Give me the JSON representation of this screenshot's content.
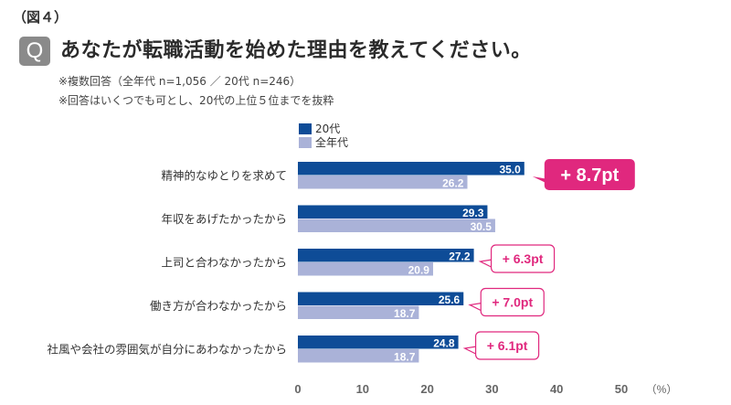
{
  "header": {
    "figure_label": "（図４）",
    "q_badge": "Q",
    "question": "あなたが転職活動を始めた理由を教えてください。",
    "note1": "※複数回答（全年代 n=1,056 ／ 20代 n=246）",
    "note2": "※回答はいくつでも可とし、20代の上位５位までを抜粋"
  },
  "colors": {
    "series_20s": "#0e4c97",
    "series_all": "#aab2d8",
    "callout": "#e0287e",
    "q_badge": "#8a8a8a"
  },
  "chart_data": {
    "type": "bar",
    "orientation": "horizontal",
    "title": "あなたが転職活動を始めた理由を教えてください。",
    "xlabel": "",
    "unit_label": "（%）",
    "xlim": [
      0,
      50
    ],
    "ticks": [
      0,
      10,
      20,
      30,
      40,
      50
    ],
    "grid": false,
    "legend_position": "top-left",
    "categories": [
      "精神的なゆとりを求めて",
      "年収をあげたかったから",
      "上司と合わなかったから",
      "働き方が合わなかったから",
      "社風や会社の雰囲気が自分にあわなかったから"
    ],
    "series": [
      {
        "name": "20代",
        "values": [
          35.0,
          29.3,
          27.2,
          25.6,
          24.8
        ]
      },
      {
        "name": "全年代",
        "values": [
          26.2,
          30.5,
          20.9,
          18.7,
          18.7
        ]
      }
    ],
    "annotations": [
      {
        "category_index": 0,
        "text": "+ 8.7pt",
        "style": "filled"
      },
      {
        "category_index": 2,
        "text": "+ 6.3pt",
        "style": "outline"
      },
      {
        "category_index": 3,
        "text": "+ 7.0pt",
        "style": "outline"
      },
      {
        "category_index": 4,
        "text": "+ 6.1pt",
        "style": "outline"
      }
    ]
  }
}
